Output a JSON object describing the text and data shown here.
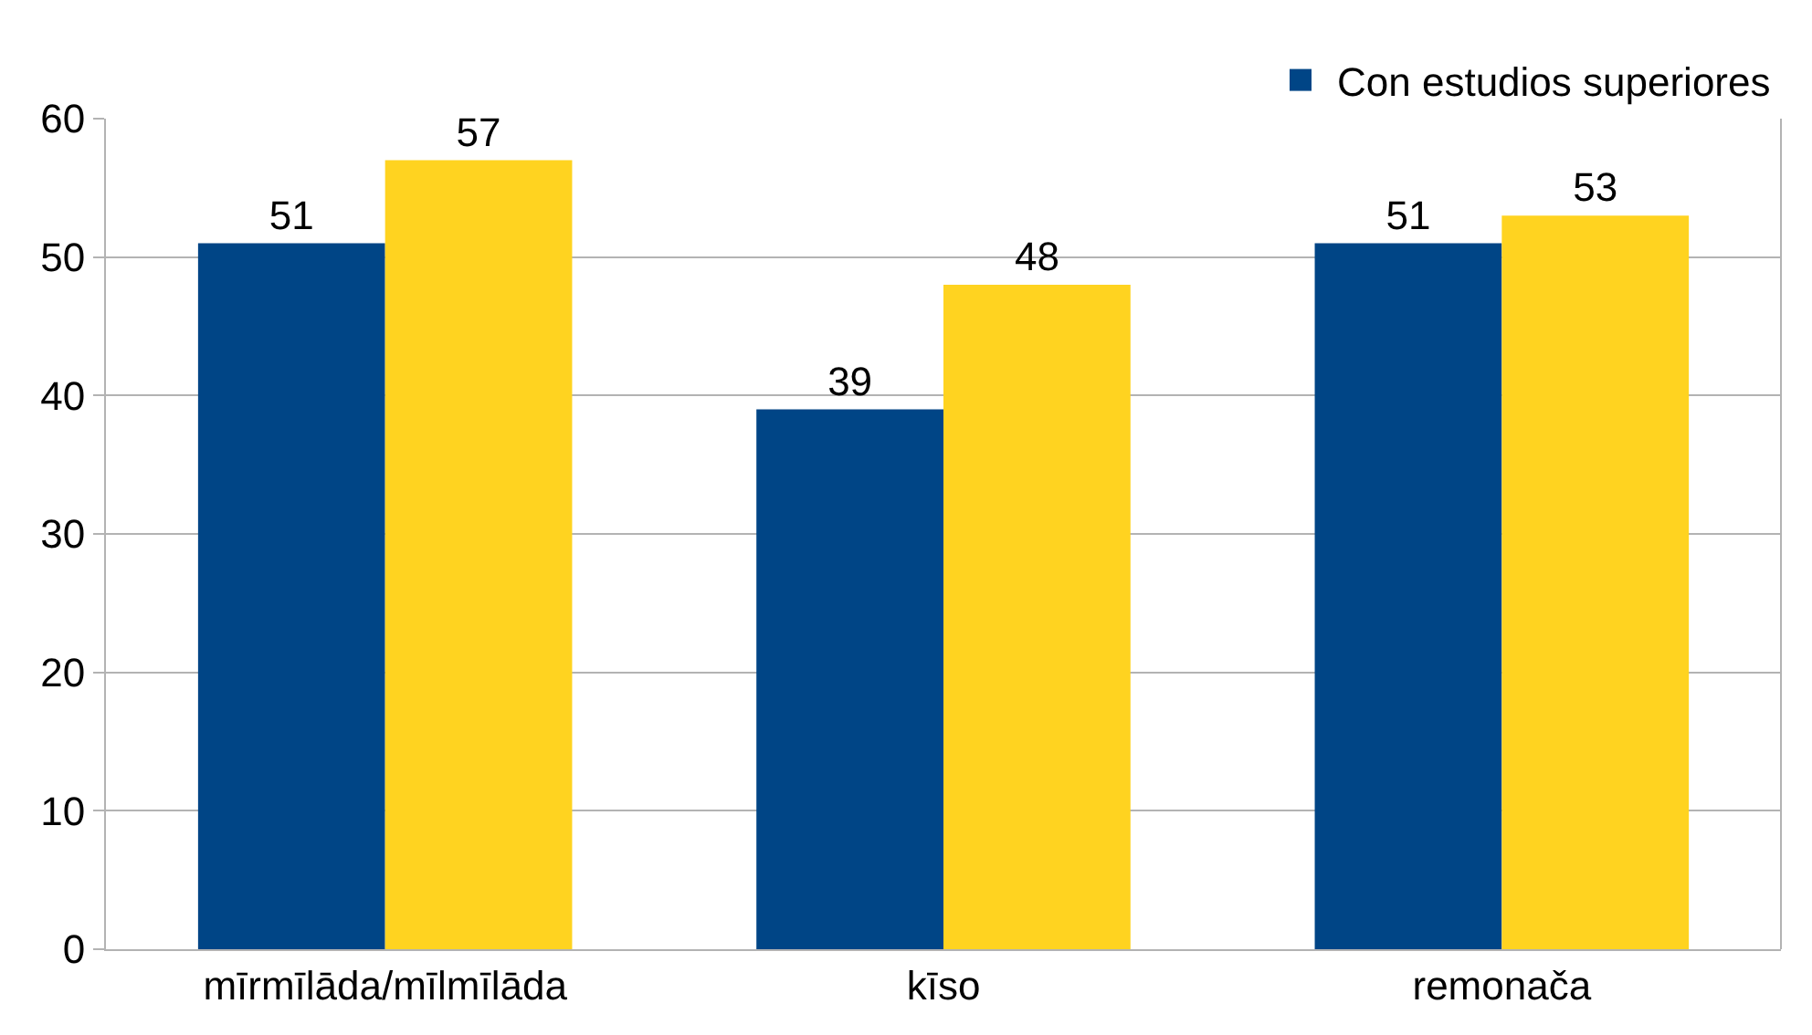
{
  "chart_data": {
    "type": "bar",
    "categories": [
      "mīrmīlāda/mīlmīlāda",
      "kīso",
      "remonača"
    ],
    "series": [
      {
        "name": "Con estudios superiores",
        "color": "#004586",
        "values": [
          51,
          39,
          51
        ]
      },
      {
        "color": "#ffd320",
        "values": [
          57,
          48,
          53
        ]
      }
    ],
    "ylim": [
      0,
      60
    ],
    "yticks": [
      0,
      10,
      20,
      30,
      40,
      50,
      60
    ],
    "grid": "y",
    "legend": "top right",
    "data_labels": true
  }
}
